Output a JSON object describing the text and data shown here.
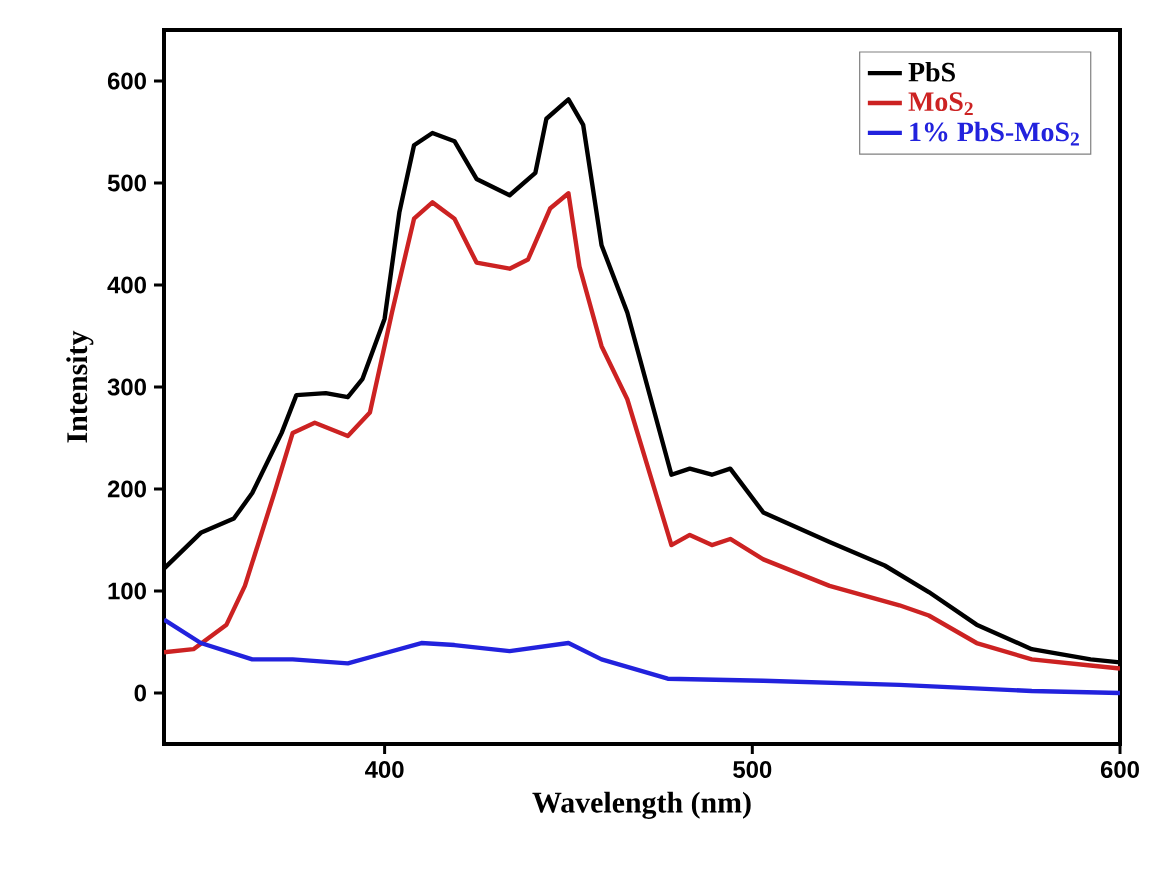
{
  "chart_data": {
    "type": "line",
    "xlabel": "Wavelength (nm)",
    "ylabel": "Intensity",
    "xlim": [
      340,
      600
    ],
    "ylim": [
      -50,
      650
    ],
    "xticks": [
      400,
      500,
      600
    ],
    "yticks": [
      0,
      100,
      200,
      300,
      400,
      500,
      600
    ],
    "legend": "top right",
    "grid": false,
    "marker": "none",
    "line_style": "solid",
    "series": [
      {
        "name": "PbS",
        "color": "#000000",
        "x": [
          340,
          350,
          359,
          364,
          372,
          376,
          384,
          390,
          394,
          400,
          404,
          408,
          413,
          419,
          425,
          434,
          441,
          444,
          450,
          454,
          459,
          466,
          478,
          483,
          489,
          494,
          503,
          521,
          536,
          548,
          561,
          576,
          592,
          600
        ],
        "values": [
          122,
          157,
          171,
          196,
          255,
          292,
          294,
          290,
          308,
          367,
          471,
          537,
          549,
          541,
          504,
          488,
          510,
          563,
          582,
          557,
          439,
          373,
          214,
          220,
          214,
          220,
          177,
          148,
          125,
          99,
          67,
          43,
          33,
          30
        ]
      },
      {
        "name": "MoS$_{2}$",
        "color": "#cc2222",
        "x": [
          340,
          348,
          357,
          362,
          370,
          375,
          381,
          390,
          396,
          402,
          408,
          413,
          419,
          425,
          434,
          439,
          445,
          450,
          453,
          459,
          466,
          478,
          483,
          489,
          494,
          503,
          521,
          540,
          548,
          561,
          576,
          592,
          600
        ],
        "values": [
          40,
          43,
          67,
          105,
          196,
          255,
          265,
          252,
          275,
          373,
          465,
          481,
          465,
          422,
          416,
          425,
          475,
          490,
          418,
          340,
          288,
          145,
          155,
          145,
          151,
          131,
          105,
          86,
          76,
          49,
          33,
          27,
          24
        ]
      },
      {
        "name": "1% PbS-MoS$_{2}$",
        "color": "#2222dd",
        "x": [
          340,
          350,
          364,
          375,
          390,
          398,
          410,
          419,
          434,
          450,
          459,
          477,
          503,
          540,
          576,
          600
        ],
        "values": [
          72,
          49,
          33,
          33,
          29,
          37,
          49,
          47,
          41,
          49,
          33,
          14,
          12,
          8,
          2,
          0
        ]
      }
    ]
  }
}
